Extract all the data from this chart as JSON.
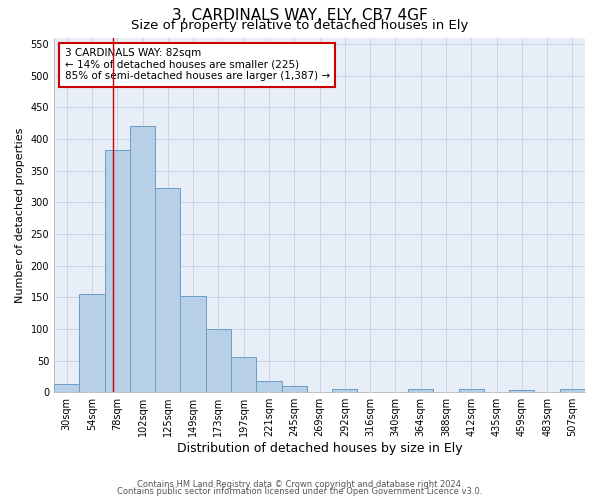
{
  "title": "3, CARDINALS WAY, ELY, CB7 4GF",
  "subtitle": "Size of property relative to detached houses in Ely",
  "xlabel": "Distribution of detached houses by size in Ely",
  "ylabel": "Number of detached properties",
  "bar_labels": [
    "30sqm",
    "54sqm",
    "78sqm",
    "102sqm",
    "125sqm",
    "149sqm",
    "173sqm",
    "197sqm",
    "221sqm",
    "245sqm",
    "269sqm",
    "292sqm",
    "316sqm",
    "340sqm",
    "364sqm",
    "388sqm",
    "412sqm",
    "435sqm",
    "459sqm",
    "483sqm",
    "507sqm"
  ],
  "bar_values": [
    13,
    155,
    383,
    420,
    323,
    152,
    100,
    55,
    18,
    10,
    0,
    5,
    0,
    0,
    5,
    0,
    5,
    0,
    3,
    0,
    5
  ],
  "bar_color": "#b8cfe8",
  "bar_edge_color": "#6a9ec5",
  "ylim": [
    0,
    560
  ],
  "yticks": [
    0,
    50,
    100,
    150,
    200,
    250,
    300,
    350,
    400,
    450,
    500,
    550
  ],
  "property_line_x": 1.85,
  "annotation_line1": "3 CARDINALS WAY: 82sqm",
  "annotation_line2": "← 14% of detached houses are smaller (225)",
  "annotation_line3": "85% of semi-detached houses are larger (1,387) →",
  "annotation_box_color": "#cc0000",
  "footer_line1": "Contains HM Land Registry data © Crown copyright and database right 2024.",
  "footer_line2": "Contains public sector information licensed under the Open Government Licence v3.0.",
  "grid_color": "#c8d4e8",
  "background_color": "#e8eef8",
  "title_fontsize": 11,
  "subtitle_fontsize": 9.5,
  "xlabel_fontsize": 9,
  "ylabel_fontsize": 8,
  "tick_fontsize": 7,
  "annot_fontsize": 7.5,
  "footer_fontsize": 6
}
